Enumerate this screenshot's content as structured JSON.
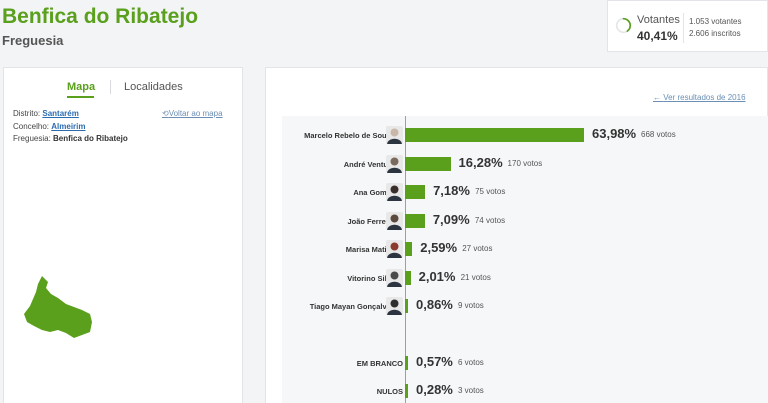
{
  "header": {
    "title": "Benfica do Ribatejo",
    "subtitle": "Freguesia"
  },
  "summary": {
    "label": "Votantes",
    "percent": "40,41%",
    "participation_fraction": 0.4041,
    "votantes": "1.053 votantes",
    "inscritos": "2.606 inscritos"
  },
  "left": {
    "tabs": {
      "mapa": "Mapa",
      "localidades": "Localidades"
    },
    "distrito_label": "Distrito:",
    "distrito_value": "Santarém",
    "concelho_label": "Concelho:",
    "concelho_value": "Almeirim",
    "freguesia_label": "Freguesia:",
    "freguesia_value": "Benfica do Ribatejo",
    "voltar": "Voltar ao mapa"
  },
  "right": {
    "ver_link": "Ver resultados de 2016"
  },
  "colors": {
    "accent": "#5aa01c",
    "link": "#2b6cb0"
  },
  "chart_data": {
    "type": "bar",
    "categories": [
      "Marcelo Rebelo de Sousa",
      "André Ventura",
      "Ana Gomes",
      "João Ferreira",
      "Marisa Matias",
      "Vitorino Silva",
      "Tiago Mayan Gonçalves",
      "EM BRANCO",
      "NULOS"
    ],
    "values": [
      63.98,
      16.28,
      7.18,
      7.09,
      2.59,
      2.01,
      0.86,
      0.57,
      0.28
    ],
    "pct_labels": [
      "63,98%",
      "16,28%",
      "7,18%",
      "7,09%",
      "2,59%",
      "2,01%",
      "0,86%",
      "0,57%",
      "0,28%"
    ],
    "vote_labels": [
      "668 votos",
      "170 votos",
      "75 votos",
      "74 votos",
      "27 votos",
      "21 votos",
      "9 votos",
      "6 votos",
      "3 votos"
    ]
  }
}
